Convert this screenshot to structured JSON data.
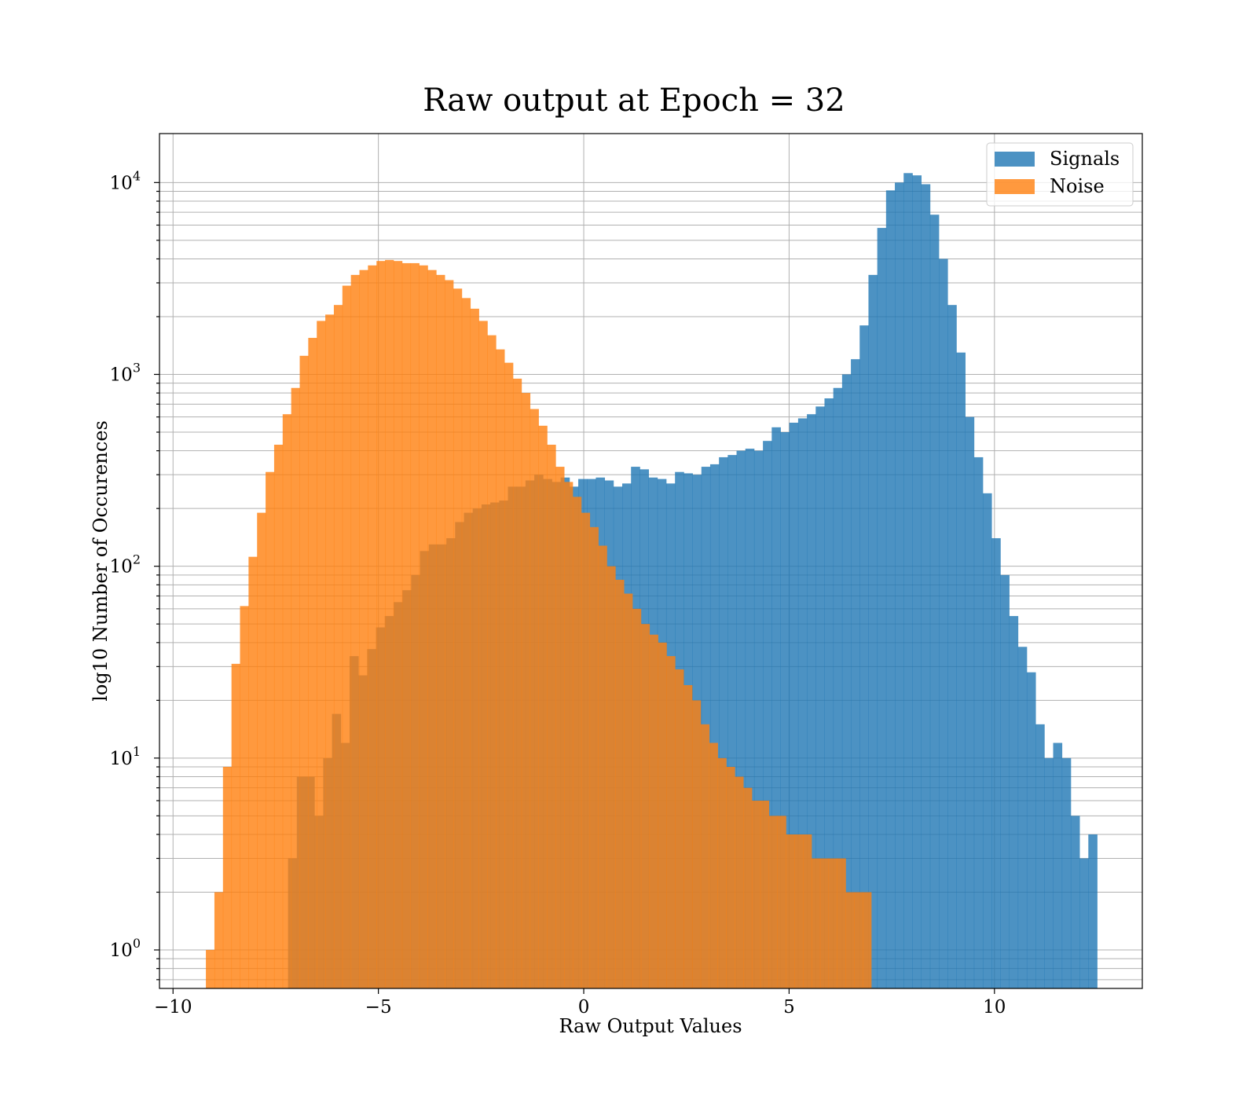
{
  "chart_data": {
    "type": "bar",
    "title": "Raw output at Epoch = 32",
    "xlabel": "Raw Output Values",
    "ylabel": "log10 Number of Occurences",
    "xlim": [
      -10.33,
      13.6
    ],
    "ylim": [
      0.63,
      18000
    ],
    "yscale": "log",
    "grid": true,
    "legend_position": "top-right",
    "x_ticks": [
      {
        "value": -10,
        "label": "−10"
      },
      {
        "value": -5,
        "label": "−5"
      },
      {
        "value": 0,
        "label": "0"
      },
      {
        "value": 5,
        "label": "5"
      },
      {
        "value": 10,
        "label": "10"
      }
    ],
    "y_ticks": [
      {
        "value": 1,
        "base": "10",
        "exp": "0"
      },
      {
        "value": 10,
        "base": "10",
        "exp": "1"
      },
      {
        "value": 100,
        "base": "10",
        "exp": "2"
      },
      {
        "value": 1000,
        "base": "10",
        "exp": "3"
      },
      {
        "value": 10000,
        "base": "10",
        "exp": "4"
      }
    ],
    "series": [
      {
        "name": "Signals",
        "color": "#1f77b4",
        "opacity": 0.8,
        "bins": [
          -7.2,
          12.5
        ],
        "values": [
          3,
          8,
          8,
          5,
          10,
          17,
          12,
          34,
          27,
          37,
          48,
          55,
          65,
          75,
          90,
          120,
          130,
          130,
          140,
          170,
          190,
          200,
          210,
          215,
          220,
          260,
          260,
          280,
          300,
          285,
          275,
          290,
          260,
          285,
          285,
          290,
          280,
          260,
          270,
          330,
          320,
          290,
          285,
          270,
          310,
          305,
          300,
          330,
          340,
          370,
          380,
          400,
          410,
          400,
          450,
          530,
          500,
          560,
          590,
          620,
          680,
          750,
          850,
          1000,
          1200,
          1800,
          3300,
          5800,
          9100,
          10000,
          11200,
          10900,
          9800,
          6800,
          4000,
          2300,
          1300,
          600,
          370,
          240,
          140,
          90,
          55,
          38,
          28,
          15,
          10,
          12,
          10,
          5,
          3,
          4
        ]
      },
      {
        "name": "Noise",
        "color": "#ff7f0e",
        "opacity": 0.8,
        "bins": [
          -9.2,
          7.0
        ],
        "values": [
          1,
          2,
          9,
          31,
          62,
          112,
          190,
          310,
          430,
          620,
          850,
          1250,
          1550,
          1900,
          2050,
          2300,
          2900,
          3300,
          3500,
          3700,
          3900,
          3950,
          3900,
          3800,
          3800,
          3700,
          3500,
          3300,
          3100,
          2800,
          2500,
          2200,
          1900,
          1600,
          1350,
          1150,
          950,
          800,
          660,
          540,
          430,
          330,
          275,
          230,
          190,
          160,
          128,
          100,
          85,
          72,
          60,
          50,
          44,
          40,
          34,
          29,
          24,
          20,
          15,
          12,
          10,
          9,
          8,
          7,
          6,
          6,
          5,
          5,
          4,
          4,
          4,
          3,
          3,
          3,
          3,
          2,
          2,
          2
        ]
      }
    ]
  }
}
